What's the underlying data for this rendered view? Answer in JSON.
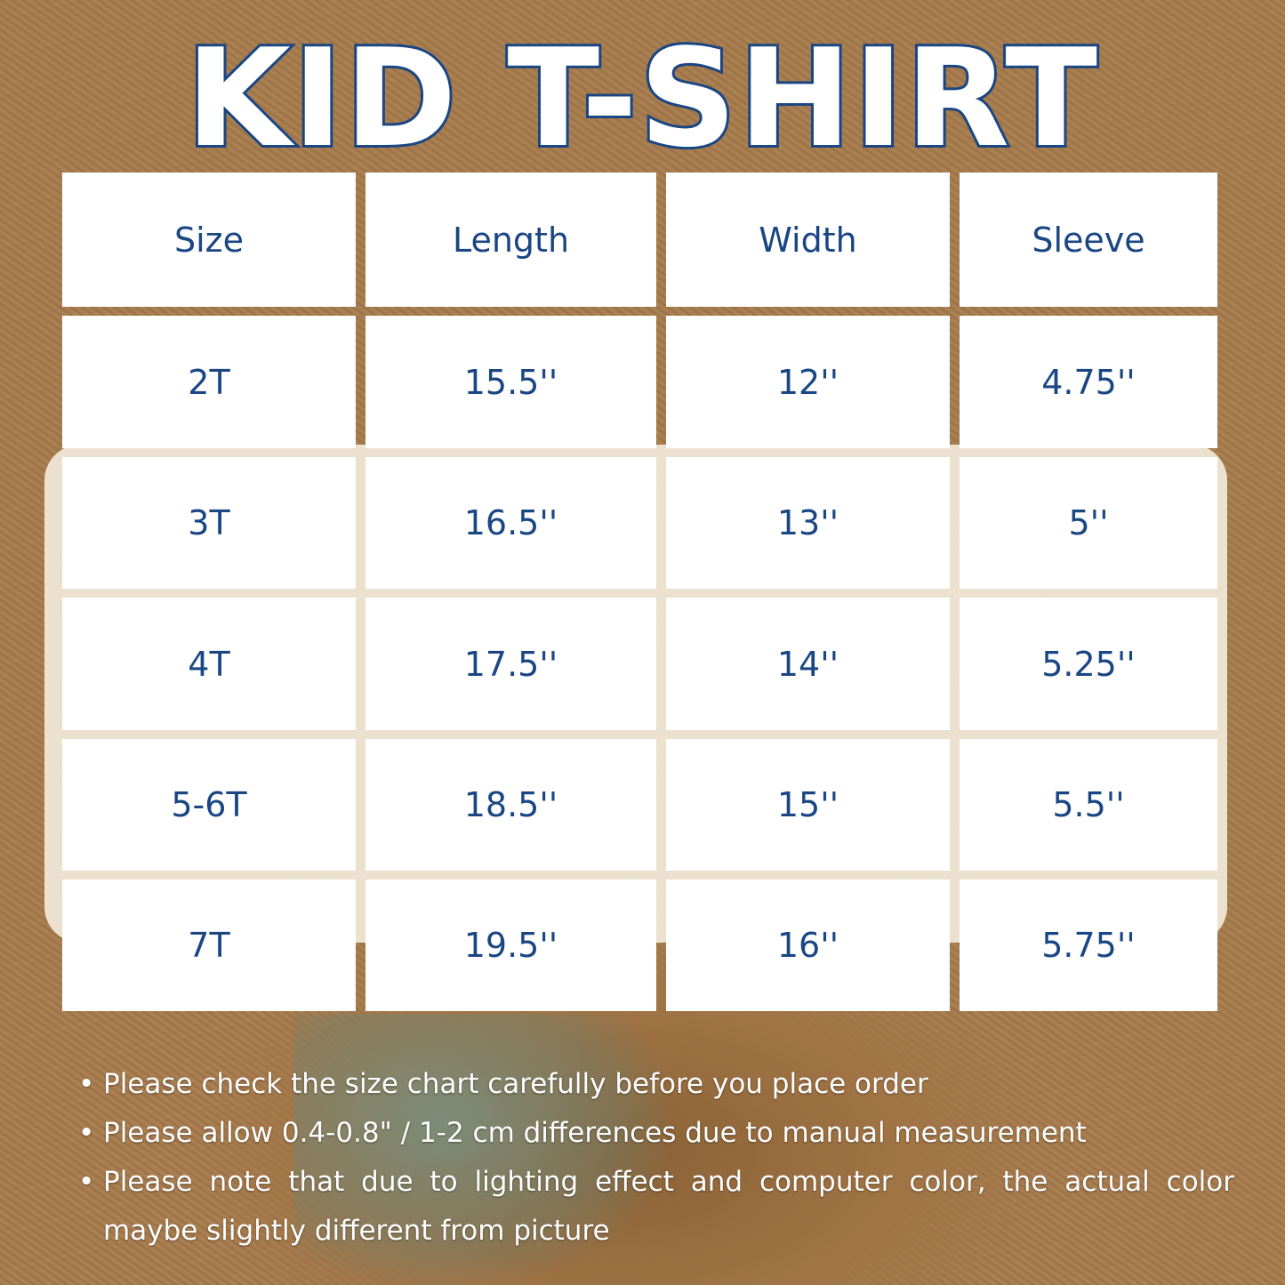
{
  "title": "KID T-SHIRT",
  "table": {
    "headers": [
      "Size",
      "Length",
      "Width",
      "Sleeve"
    ],
    "rows": [
      [
        "2T",
        "15.5''",
        "12''",
        "4.75''"
      ],
      [
        "3T",
        "16.5''",
        "13''",
        "5''"
      ],
      [
        "4T",
        "17.5''",
        "14''",
        "5.25''"
      ],
      [
        "5-6T",
        "18.5''",
        "15''",
        "5.5''"
      ],
      [
        "7T",
        "19.5''",
        "16''",
        "5.75''"
      ]
    ]
  },
  "notes": [
    "Please check the size chart carefully before you place order",
    "Please allow 0.4-0.8\" / 1-2 cm differences due to manual measurement",
    "Please note that due to lighting effect and computer color, the actual color maybe slightly different from picture"
  ],
  "colors": {
    "text": "#1a4684",
    "cell": "#ffffff",
    "background": "#a77b4c"
  }
}
